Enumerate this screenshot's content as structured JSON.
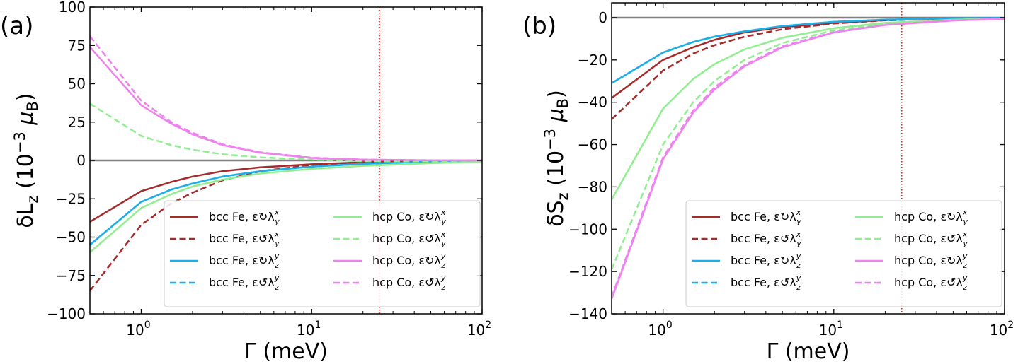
{
  "chart_data": [
    {
      "type": "line",
      "panel_label": "(a)",
      "xlabel": "Γ (meV)",
      "ylabel_main": "δL",
      "ylabel_sub": "z",
      "ylabel_unit": "(10",
      "ylabel_exp": "−3",
      "ylabel_mu": "μ",
      "ylabel_mu_sub": "B",
      "ylabel_close": ")",
      "xscale": "log",
      "xlim": [
        0.5,
        100
      ],
      "ylim": [
        -100,
        100
      ],
      "yticks": [
        -100,
        -75,
        -50,
        -25,
        0,
        25,
        50,
        75,
        100
      ],
      "ytick_labels": [
        "−100",
        "−75",
        "−50",
        "−25",
        "0",
        "25",
        "50",
        "75",
        "100"
      ],
      "xticks": [
        1,
        10,
        100
      ],
      "xtick_labels": [
        {
          "base": "10",
          "exp": "0"
        },
        {
          "base": "10",
          "exp": "1"
        },
        {
          "base": "10",
          "exp": "2"
        }
      ],
      "vline_x": 25,
      "hline_y": 0,
      "legend_position": "lower right",
      "series": [
        {
          "name": "bcc Fe, ε↻λ",
          "sup": "x",
          "sub": "y",
          "color": "#a52a2a",
          "dash": "solid",
          "x": [
            0.5,
            1,
            1.5,
            2,
            3,
            5,
            10,
            20,
            50,
            100
          ],
          "y": [
            -40,
            -20,
            -14,
            -10.5,
            -7,
            -4.5,
            -2.5,
            -1.2,
            -0.4,
            -0.1
          ]
        },
        {
          "name": "bcc Fe, ε↺λ",
          "sup": "x",
          "sub": "y",
          "color": "#a52a2a",
          "dash": "dashed",
          "x": [
            0.5,
            1,
            1.5,
            2,
            3,
            5,
            10,
            20,
            50,
            100
          ],
          "y": [
            -85,
            -42,
            -28,
            -21,
            -13,
            -7,
            -3,
            -1.2,
            -0.3,
            -0.1
          ]
        },
        {
          "name": "bcc Fe, ε↻λ",
          "sup": "y",
          "sub": "z",
          "color": "#1aafea",
          "dash": "solid",
          "x": [
            0.5,
            1,
            1.5,
            2,
            3,
            5,
            10,
            20,
            50,
            100
          ],
          "y": [
            -55,
            -27,
            -19,
            -15,
            -10.5,
            -7,
            -4,
            -2.2,
            -0.8,
            -0.3
          ]
        },
        {
          "name": "bcc Fe, ε↺λ",
          "sup": "y",
          "sub": "z",
          "color": "#1aafea",
          "dash": "dashed",
          "x": [
            0.5,
            1,
            1.5,
            2,
            3,
            5,
            10,
            20,
            50,
            100
          ],
          "y": [
            -55,
            -27,
            -19,
            -15,
            -10.5,
            -7,
            -4,
            -2.2,
            -0.8,
            -0.3
          ]
        },
        {
          "name": "hcp Co, ε↻λ",
          "sup": "x",
          "sub": "y",
          "color": "#90ee90",
          "dash": "solid",
          "x": [
            0.5,
            1,
            1.5,
            2,
            3,
            5,
            10,
            20,
            50,
            100
          ],
          "y": [
            -60,
            -31,
            -22,
            -17,
            -12.5,
            -8.5,
            -5.5,
            -3.5,
            -1.8,
            -0.9
          ]
        },
        {
          "name": "hcp Co, ε↺λ",
          "sup": "x",
          "sub": "y",
          "color": "#90ee90",
          "dash": "dashed",
          "x": [
            0.5,
            1,
            1.5,
            2,
            3,
            5,
            10,
            20,
            50,
            100
          ],
          "y": [
            37,
            16,
            10,
            7,
            4,
            2,
            0.5,
            -0.5,
            -0.6,
            -0.3
          ]
        },
        {
          "name": "hcp Co, ε↻λ",
          "sup": "y",
          "sub": "z",
          "color": "#ee82ee",
          "dash": "solid",
          "x": [
            0.5,
            1,
            1.5,
            2,
            3,
            5,
            10,
            20,
            50,
            100
          ],
          "y": [
            74,
            36,
            24,
            17,
            10,
            5,
            1.6,
            0.5,
            0.1,
            0
          ]
        },
        {
          "name": "hcp Co, ε↺λ",
          "sup": "y",
          "sub": "z",
          "color": "#ee82ee",
          "dash": "dashed",
          "x": [
            0.5,
            1,
            1.5,
            2,
            3,
            5,
            10,
            20,
            50,
            100
          ],
          "y": [
            81,
            39,
            25,
            18,
            10.5,
            5.3,
            1.8,
            0.6,
            0.1,
            0
          ]
        }
      ]
    },
    {
      "type": "line",
      "panel_label": "(b)",
      "xlabel": "Γ (meV)",
      "ylabel_main": "δS",
      "ylabel_sub": "z",
      "ylabel_unit": "(10",
      "ylabel_exp": "−3",
      "ylabel_mu": "μ",
      "ylabel_mu_sub": "B",
      "ylabel_close": ")",
      "xscale": "log",
      "xlim": [
        0.5,
        100
      ],
      "ylim": [
        -140,
        7
      ],
      "yticks": [
        -140,
        -120,
        -100,
        -80,
        -60,
        -40,
        -20,
        0
      ],
      "ytick_labels": [
        "−140",
        "−120",
        "−100",
        "−80",
        "−60",
        "−40",
        "−20",
        "0"
      ],
      "xticks": [
        1,
        10,
        100
      ],
      "xtick_labels": [
        {
          "base": "10",
          "exp": "0"
        },
        {
          "base": "10",
          "exp": "1"
        },
        {
          "base": "10",
          "exp": "2"
        }
      ],
      "vline_x": 25,
      "hline_y": 0,
      "legend_position": "lower right",
      "series": [
        {
          "name": "bcc Fe, ε↻λ",
          "sup": "x",
          "sub": "y",
          "color": "#a52a2a",
          "dash": "solid",
          "x": [
            0.5,
            1,
            1.5,
            2,
            3,
            5,
            10,
            20,
            50,
            100
          ],
          "y": [
            -38,
            -20,
            -14,
            -10.5,
            -7,
            -4.5,
            -2.5,
            -1.2,
            -0.4,
            -0.1
          ]
        },
        {
          "name": "bcc Fe, ε↺λ",
          "sup": "x",
          "sub": "y",
          "color": "#a52a2a",
          "dash": "dashed",
          "x": [
            0.5,
            1,
            1.5,
            2,
            3,
            5,
            10,
            20,
            50,
            100
          ],
          "y": [
            -48,
            -25,
            -17,
            -13,
            -9,
            -5.5,
            -2.8,
            -1.3,
            -0.4,
            -0.1
          ]
        },
        {
          "name": "bcc Fe, ε↻λ",
          "sup": "y",
          "sub": "z",
          "color": "#1aafea",
          "dash": "solid",
          "x": [
            0.5,
            1,
            1.5,
            2,
            3,
            5,
            10,
            20,
            50,
            100
          ],
          "y": [
            -31,
            -16.5,
            -11.5,
            -9,
            -6.5,
            -4,
            -2,
            -1,
            -0.3,
            -0.1
          ]
        },
        {
          "name": "bcc Fe, ε↺λ",
          "sup": "y",
          "sub": "z",
          "color": "#1aafea",
          "dash": "dashed",
          "x": [
            0.5,
            1,
            1.5,
            2,
            3,
            5,
            10,
            20,
            50,
            100
          ],
          "y": [
            -31,
            -16.5,
            -11.5,
            -9,
            -6.5,
            -4,
            -2,
            -1,
            -0.3,
            -0.1
          ]
        },
        {
          "name": "hcp Co, ε↻λ",
          "sup": "x",
          "sub": "y",
          "color": "#90ee90",
          "dash": "solid",
          "x": [
            0.5,
            1,
            1.5,
            2,
            3,
            5,
            10,
            20,
            50,
            100
          ],
          "y": [
            -86,
            -43,
            -29,
            -22,
            -15,
            -9.5,
            -5,
            -2.5,
            -1,
            -0.4
          ]
        },
        {
          "name": "hcp Co, ε↺λ",
          "sup": "x",
          "sub": "y",
          "color": "#90ee90",
          "dash": "dashed",
          "x": [
            0.5,
            1,
            1.5,
            2,
            3,
            5,
            10,
            20,
            50,
            100
          ],
          "y": [
            -119,
            -60,
            -40,
            -30,
            -20,
            -12,
            -6,
            -3,
            -1.2,
            -0.5
          ]
        },
        {
          "name": "hcp Co, ε↻λ",
          "sup": "y",
          "sub": "z",
          "color": "#ee82ee",
          "dash": "solid",
          "x": [
            0.5,
            1,
            1.5,
            2,
            3,
            5,
            10,
            20,
            50,
            100
          ],
          "y": [
            -133,
            -67,
            -45,
            -34,
            -23,
            -14,
            -7,
            -3.5,
            -1.4,
            -0.6
          ]
        },
        {
          "name": "hcp Co, ε↺λ",
          "sup": "y",
          "sub": "z",
          "color": "#ee82ee",
          "dash": "dashed",
          "x": [
            0.5,
            1,
            1.5,
            2,
            3,
            5,
            10,
            20,
            50,
            100
          ],
          "y": [
            -132,
            -66,
            -44,
            -33,
            -22.5,
            -13.5,
            -6.8,
            -3.4,
            -1.3,
            -0.5
          ]
        }
      ]
    }
  ]
}
